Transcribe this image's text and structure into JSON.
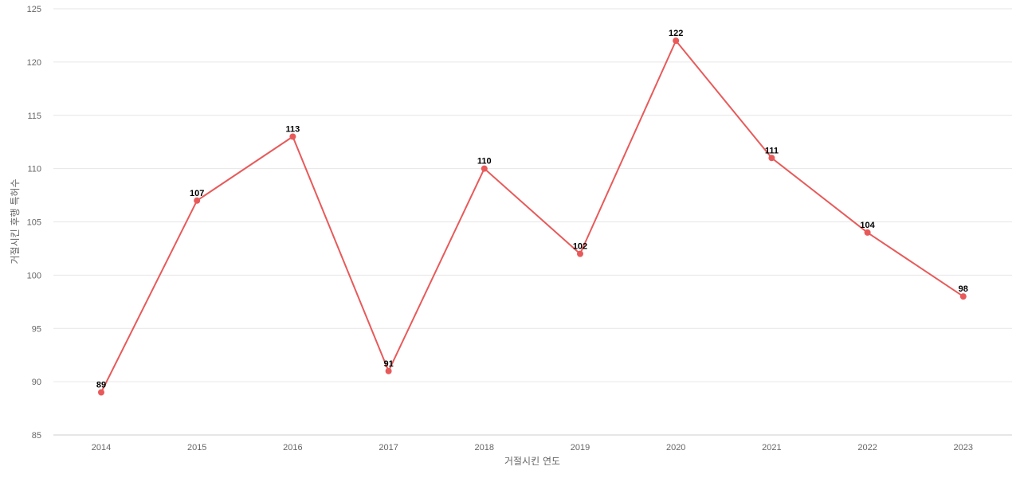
{
  "chart_data": {
    "type": "line",
    "title": "",
    "xlabel": "거절시킨 연도",
    "ylabel": "거절시킨 후행 특허수",
    "categories": [
      "2014",
      "2015",
      "2016",
      "2017",
      "2018",
      "2019",
      "2020",
      "2021",
      "2022",
      "2023"
    ],
    "series": [
      {
        "values": [
          89,
          107,
          113,
          91,
          110,
          102,
          122,
          111,
          104,
          98
        ],
        "color": "#e85a5a"
      }
    ],
    "ylim": [
      85,
      125
    ],
    "yticks": [
      "85",
      "90",
      "95",
      "100",
      "105",
      "110",
      "115",
      "120",
      "125"
    ],
    "data_labels": [
      "89",
      "107",
      "113",
      "91",
      "110",
      "102",
      "122",
      "111",
      "104",
      "98"
    ],
    "grid": true,
    "legend": "none"
  }
}
